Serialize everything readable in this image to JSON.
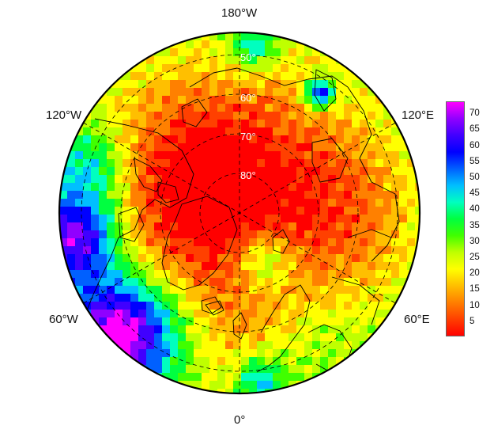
{
  "map": {
    "projection": "north-polar-stereographic",
    "longitude_labels": {
      "top": "180°W",
      "upper_left": "120°W",
      "upper_right": "120°E",
      "lower_left": "60°W",
      "lower_right": "60°E",
      "bottom": "0°"
    },
    "latitude_labels": [
      "50°",
      "60°",
      "70°",
      "80°"
    ],
    "colorbar": {
      "ticks": [
        "70",
        "65",
        "60",
        "55",
        "50",
        "45",
        "40",
        "35",
        "30",
        "25",
        "20",
        "15",
        "10",
        "5"
      ],
      "range": [
        1,
        74
      ],
      "colors": [
        "#ff0000",
        "#ff4000",
        "#ff8000",
        "#ffbf00",
        "#ffff00",
        "#bfff00",
        "#40ff00",
        "#00ff40",
        "#00ffbf",
        "#00bfff",
        "#0060ff",
        "#0000ff",
        "#4000ff",
        "#9000ff",
        "#ff00ff"
      ]
    }
  }
}
